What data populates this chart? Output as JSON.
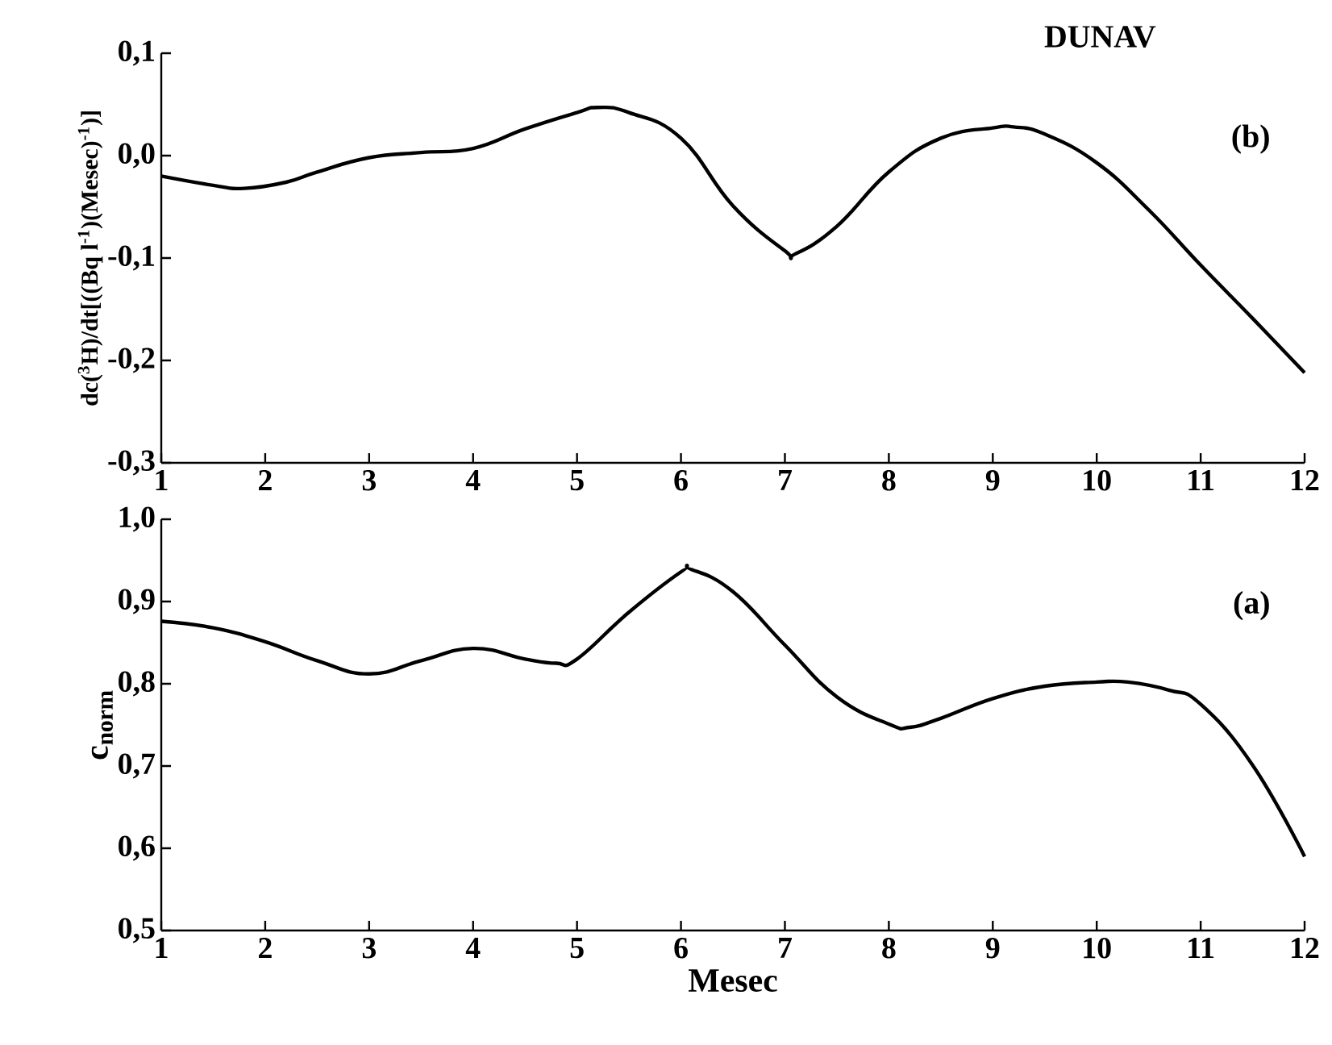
{
  "chart_data": [
    {
      "type": "line",
      "ylabel": "dc($^{3}$H)/dt[((Bq l$^{-1}$)(Mesec)$^{-1}$)]",
      "annotations": [
        "DUNAV",
        "(b)"
      ],
      "x": [
        1,
        1.5,
        1.8,
        2.2,
        2.5,
        3,
        3.5,
        4,
        4.5,
        5,
        5.2,
        5.5,
        6,
        6.5,
        7,
        7.1,
        7.5,
        8,
        8.5,
        9,
        9.2,
        9.5,
        10,
        10.5,
        11,
        11.5,
        12
      ],
      "series": [
        {
          "color": "#000000",
          "values": [
            -0.02,
            -0.029,
            -0.032,
            -0.026,
            -0.016,
            -0.002,
            0.003,
            0.007,
            0.026,
            0.042,
            0.047,
            0.042,
            0.017,
            -0.049,
            -0.093,
            -0.096,
            -0.069,
            -0.016,
            0.017,
            0.027,
            0.028,
            0.021,
            -0.007,
            -0.053,
            -0.107,
            -0.159,
            -0.212
          ]
        }
      ],
      "xlim": [
        1,
        12
      ],
      "xticks": [
        1,
        2,
        3,
        4,
        5,
        6,
        7,
        8,
        9,
        10,
        11,
        12
      ],
      "ylim": [
        -0.3,
        0.1
      ],
      "yticks": [
        {
          "value": -0.3,
          "label": "-0,3"
        },
        {
          "value": -0.2,
          "label": "-0,2"
        },
        {
          "value": -0.1,
          "label": "-0,1"
        },
        {
          "value": 0.0,
          "label": "0,0"
        },
        {
          "value": 0.1,
          "label": "0,1"
        }
      ],
      "marker": "none",
      "line_style": "solid"
    },
    {
      "type": "line",
      "xlabel": "Mesec",
      "ylabel": "c$_{norm}$",
      "annotations": [
        "(a)"
      ],
      "x": [
        1,
        1.5,
        2,
        2.5,
        3,
        3.5,
        4,
        4.5,
        4.8,
        5,
        5.5,
        6,
        6.1,
        6.5,
        7,
        7.5,
        8,
        8.2,
        8.5,
        9,
        9.5,
        10,
        10.3,
        10.7,
        11,
        11.5,
        12
      ],
      "series": [
        {
          "color": "#000000",
          "values": [
            0.876,
            0.868,
            0.851,
            0.828,
            0.812,
            0.828,
            0.843,
            0.83,
            0.825,
            0.83,
            0.887,
            0.936,
            0.939,
            0.912,
            0.847,
            0.784,
            0.751,
            0.747,
            0.758,
            0.782,
            0.797,
            0.802,
            0.802,
            0.792,
            0.775,
            0.701,
            0.59
          ]
        }
      ],
      "xlim": [
        1,
        12
      ],
      "xticks": [
        1,
        2,
        3,
        4,
        5,
        6,
        7,
        8,
        9,
        10,
        11,
        12
      ],
      "ylim": [
        0.5,
        1.0
      ],
      "yticks": [
        {
          "value": 0.5,
          "label": "0,5"
        },
        {
          "value": 0.6,
          "label": "0,6"
        },
        {
          "value": 0.7,
          "label": "0,7"
        },
        {
          "value": 0.8,
          "label": "0,8"
        },
        {
          "value": 0.9,
          "label": "0,9"
        },
        {
          "value": 1.0,
          "label": "1,0"
        }
      ],
      "marker": "none",
      "line_style": "solid"
    }
  ]
}
